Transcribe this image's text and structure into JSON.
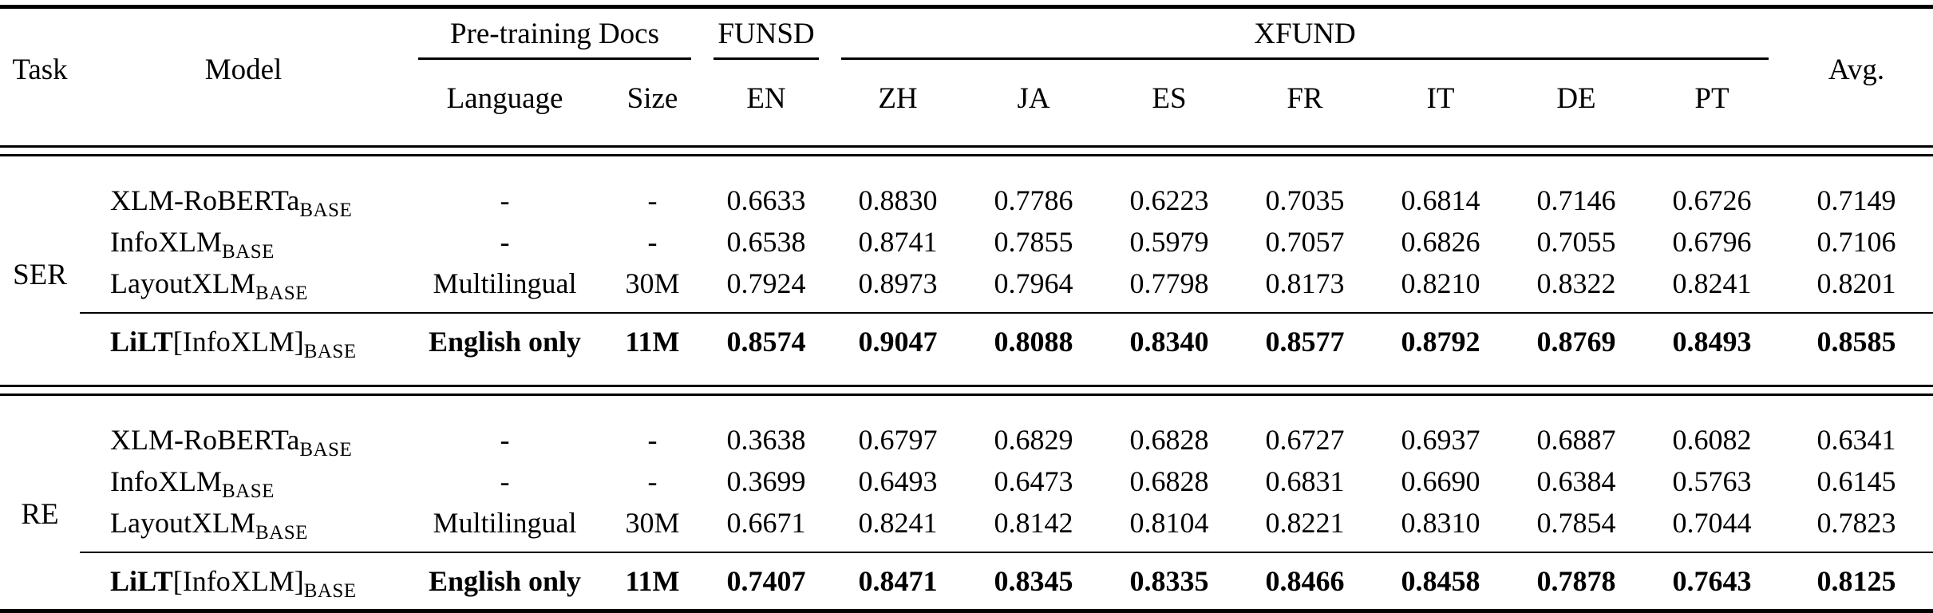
{
  "colors": {
    "text": "#000000",
    "background": "#ffffff",
    "rules": "#000000"
  },
  "table": {
    "header": {
      "task": "Task",
      "model": "Model",
      "pretraining_group": "Pre-training Docs",
      "language": "Language",
      "size": "Size",
      "funsd_group": "FUNSD",
      "funsd_cols": [
        "EN"
      ],
      "xfund_group": "XFUND",
      "xfund_cols": [
        "ZH",
        "JA",
        "ES",
        "FR",
        "IT",
        "DE",
        "PT"
      ],
      "avg": "Avg."
    },
    "sections": [
      {
        "task": "SER",
        "rows": [
          {
            "model": "XLM-RoBERTa",
            "model_sub": "BASE",
            "language": "-",
            "size": "-",
            "emphasis": false,
            "values": [
              "0.6633",
              "0.8830",
              "0.7786",
              "0.6223",
              "0.7035",
              "0.6814",
              "0.7146",
              "0.6726",
              "0.7149"
            ]
          },
          {
            "model": "InfoXLM",
            "model_sub": "BASE",
            "language": "-",
            "size": "-",
            "emphasis": false,
            "values": [
              "0.6538",
              "0.8741",
              "0.7855",
              "0.5979",
              "0.7057",
              "0.6826",
              "0.7055",
              "0.6796",
              "0.7106"
            ]
          },
          {
            "model": "LayoutXLM",
            "model_sub": "BASE",
            "language": "Multilingual",
            "size": "30M",
            "emphasis": false,
            "values": [
              "0.7924",
              "0.8973",
              "0.7964",
              "0.7798",
              "0.8173",
              "0.8210",
              "0.8322",
              "0.8241",
              "0.8201"
            ]
          },
          {
            "model_bold": "LiLT",
            "model": "[InfoXLM]",
            "model_sub": "BASE",
            "language": "English only",
            "size": "11M",
            "emphasis": true,
            "values": [
              "0.8574",
              "0.9047",
              "0.8088",
              "0.8340",
              "0.8577",
              "0.8792",
              "0.8769",
              "0.8493",
              "0.8585"
            ]
          }
        ]
      },
      {
        "task": "RE",
        "rows": [
          {
            "model": "XLM-RoBERTa",
            "model_sub": "BASE",
            "language": "-",
            "size": "-",
            "emphasis": false,
            "values": [
              "0.3638",
              "0.6797",
              "0.6829",
              "0.6828",
              "0.6727",
              "0.6937",
              "0.6887",
              "0.6082",
              "0.6341"
            ]
          },
          {
            "model": "InfoXLM",
            "model_sub": "BASE",
            "language": "-",
            "size": "-",
            "emphasis": false,
            "values": [
              "0.3699",
              "0.6493",
              "0.6473",
              "0.6828",
              "0.6831",
              "0.6690",
              "0.6384",
              "0.5763",
              "0.6145"
            ]
          },
          {
            "model": "LayoutXLM",
            "model_sub": "BASE",
            "language": "Multilingual",
            "size": "30M",
            "emphasis": false,
            "values": [
              "0.6671",
              "0.8241",
              "0.8142",
              "0.8104",
              "0.8221",
              "0.8310",
              "0.7854",
              "0.7044",
              "0.7823"
            ]
          },
          {
            "model_bold": "LiLT",
            "model": "[InfoXLM]",
            "model_sub": "BASE",
            "language": "English only",
            "size": "11M",
            "emphasis": true,
            "values": [
              "0.7407",
              "0.8471",
              "0.8345",
              "0.8335",
              "0.8466",
              "0.8458",
              "0.7878",
              "0.7643",
              "0.8125"
            ]
          }
        ]
      }
    ]
  }
}
